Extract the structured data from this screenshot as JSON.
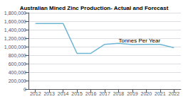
{
  "chart_data": {
    "type": "line",
    "title": "Australian Mined Zinc Production- Actual and Forecast",
    "x": [
      2012,
      2013,
      2014,
      2015,
      2016,
      2017,
      2018,
      2019,
      2020,
      2021,
      2022
    ],
    "values": [
      1547472,
      1547472,
      1547472,
      840933,
      841804,
      1054526,
      1077981,
      1051709,
      1053012,
      1053012,
      973478
    ],
    "color": "#6db6d4",
    "xlim": [
      2011.5,
      2022.5
    ],
    "xticks": [
      2012,
      2013,
      2014,
      2015,
      2016,
      2017,
      2018,
      2019,
      2020,
      2021,
      2022
    ],
    "ylim": [
      0,
      1800000
    ],
    "yticks": [
      0,
      {
        "value": 200000,
        "label": "200,000"
      },
      {
        "value": 400000,
        "label": "400,000"
      },
      {
        "value": 600000,
        "label": "600,000"
      },
      {
        "value": 800000,
        "label": "800,000"
      },
      {
        "value": 1000000,
        "label": "1,000,000"
      },
      {
        "value": 1200000,
        "label": "1,200,000"
      },
      {
        "value": 1400000,
        "label": "1,400,000"
      },
      {
        "value": 1600000,
        "label": "1,600,000"
      },
      {
        "value": 1800000,
        "label": "1,800,000"
      }
    ],
    "grid": true,
    "annotations": [
      {
        "text": "Tonnes Per Year",
        "x": 2018,
        "y": 1150000
      }
    ]
  }
}
